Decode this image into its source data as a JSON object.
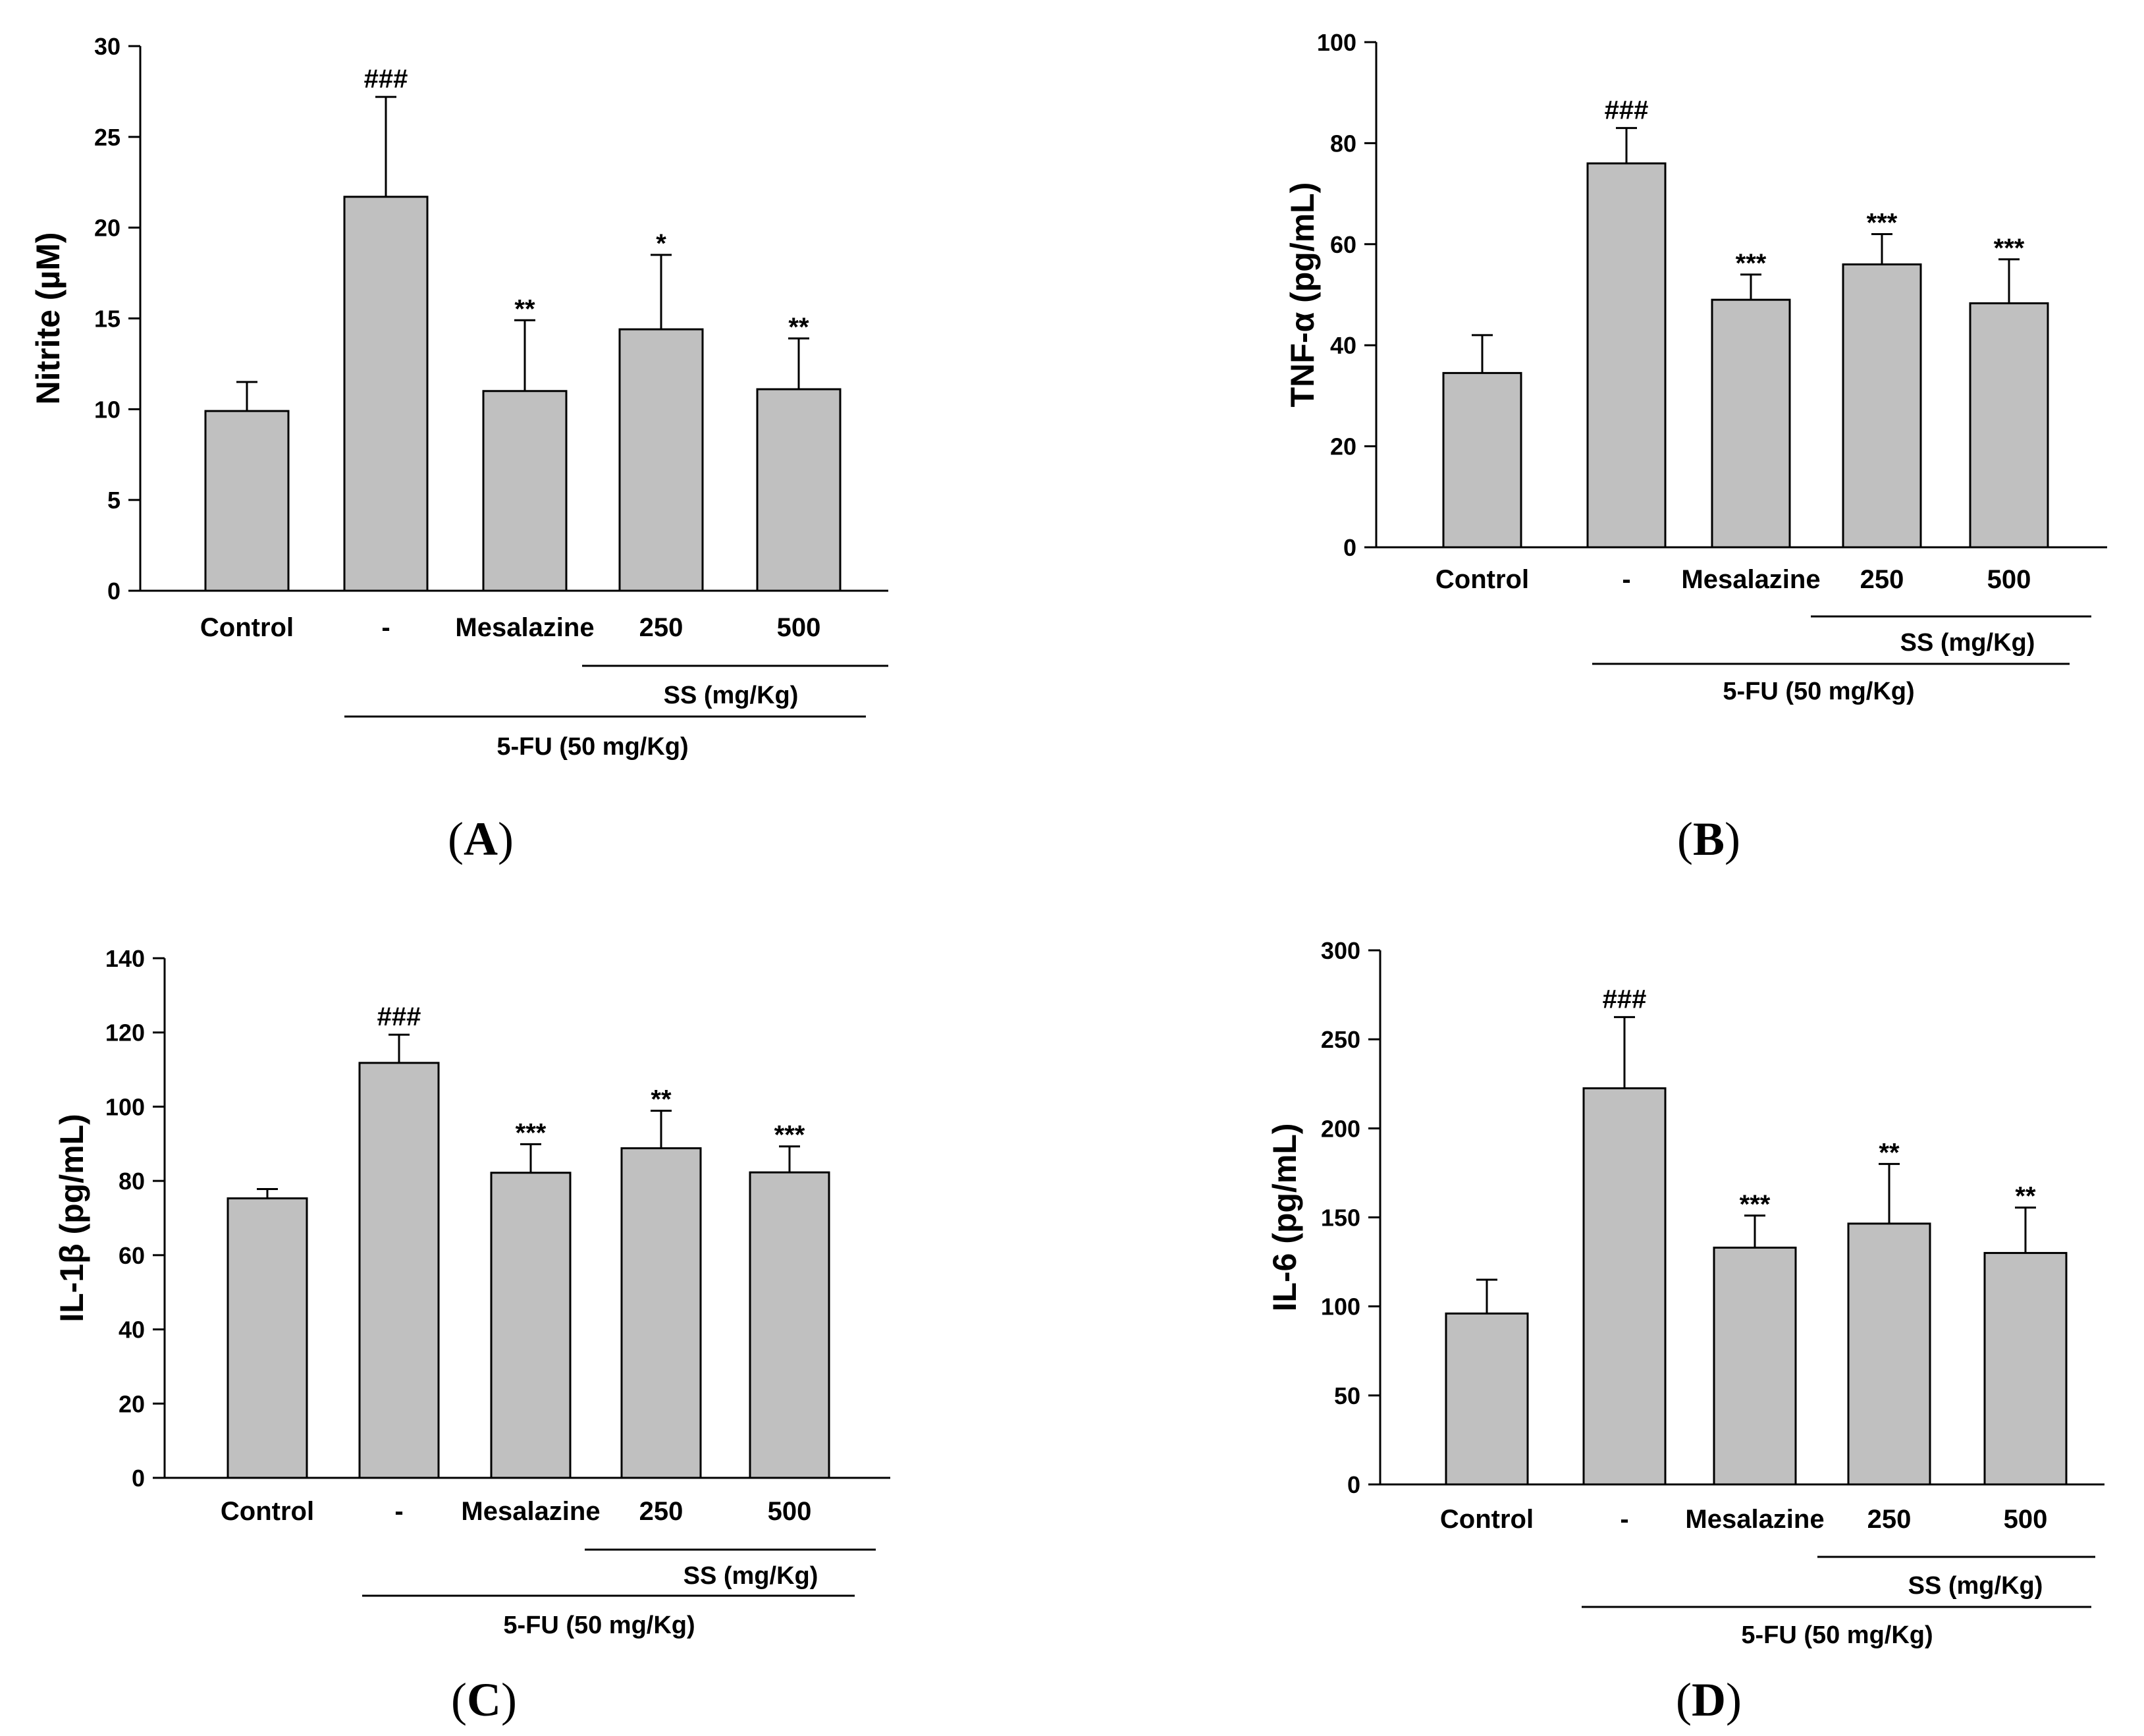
{
  "chart_data": [
    {
      "panel": "A",
      "type": "bar",
      "ylabel": "Nitrite (µM)",
      "categories": [
        "Control",
        "-",
        "Mesalazine",
        "250",
        "500"
      ],
      "values": [
        9.9,
        21.7,
        11.0,
        14.4,
        11.1
      ],
      "errors": [
        1.6,
        5.5,
        3.9,
        4.1,
        2.8
      ],
      "significance": [
        "",
        "###",
        "**",
        "*",
        "**"
      ],
      "ylim": [
        0,
        30
      ],
      "yticks": [
        0,
        5,
        10,
        15,
        20,
        25,
        30
      ],
      "group_ss": "SS (mg/Kg)",
      "group_5fu": "5-FU (50 mg/Kg)",
      "label_open": "(",
      "label_letter": "A",
      "label_close": ")"
    },
    {
      "panel": "B",
      "type": "bar",
      "ylabel": "TNF-α (pg/mL)",
      "categories": [
        "Control",
        "-",
        "Mesalazine",
        "250",
        "500"
      ],
      "values": [
        34.5,
        76.0,
        49.0,
        56.0,
        48.3
      ],
      "errors": [
        7.5,
        7.0,
        5.0,
        6.0,
        8.7
      ],
      "significance": [
        "",
        "###",
        "***",
        "***",
        "***"
      ],
      "ylim": [
        0,
        100
      ],
      "yticks": [
        0,
        20,
        40,
        60,
        80,
        100
      ],
      "group_ss": "SS (mg/Kg)",
      "group_5fu": "5-FU (50 mg/Kg)",
      "label_open": "(",
      "label_letter": "B",
      "label_close": ")"
    },
    {
      "panel": "C",
      "type": "bar",
      "ylabel": "IL-1β (pg/mL)",
      "categories": [
        "Control",
        "-",
        "Mesalazine",
        "250",
        "500"
      ],
      "values": [
        75.3,
        111.8,
        82.2,
        88.8,
        82.3
      ],
      "errors": [
        2.5,
        7.6,
        7.7,
        10.1,
        7.0
      ],
      "significance": [
        "",
        "###",
        "***",
        "**",
        "***"
      ],
      "ylim": [
        0,
        140
      ],
      "yticks": [
        0,
        20,
        40,
        60,
        80,
        100,
        120,
        140
      ],
      "group_ss": "SS (mg/Kg)",
      "group_5fu": "5-FU (50 mg/Kg)",
      "label_open": "(",
      "label_letter": "C",
      "label_close": ")"
    },
    {
      "panel": "D",
      "type": "bar",
      "ylabel": "IL-6 (pg/mL)",
      "categories": [
        "Control",
        "-",
        "Mesalazine",
        "250",
        "500"
      ],
      "values": [
        96.0,
        222.5,
        133.0,
        146.5,
        130.0
      ],
      "errors": [
        19.0,
        40.0,
        18.0,
        33.5,
        25.5
      ],
      "significance": [
        "",
        "###",
        "***",
        "**",
        "**"
      ],
      "ylim": [
        0,
        300
      ],
      "yticks": [
        0,
        50,
        100,
        150,
        200,
        250,
        300
      ],
      "group_ss": "SS (mg/Kg)",
      "group_5fu": "5-FU (50 mg/Kg)",
      "label_open": "(",
      "label_letter": "D",
      "label_close": ")"
    }
  ],
  "style": {
    "bar_fill": "#c0c0c0",
    "stroke": "#000000"
  }
}
